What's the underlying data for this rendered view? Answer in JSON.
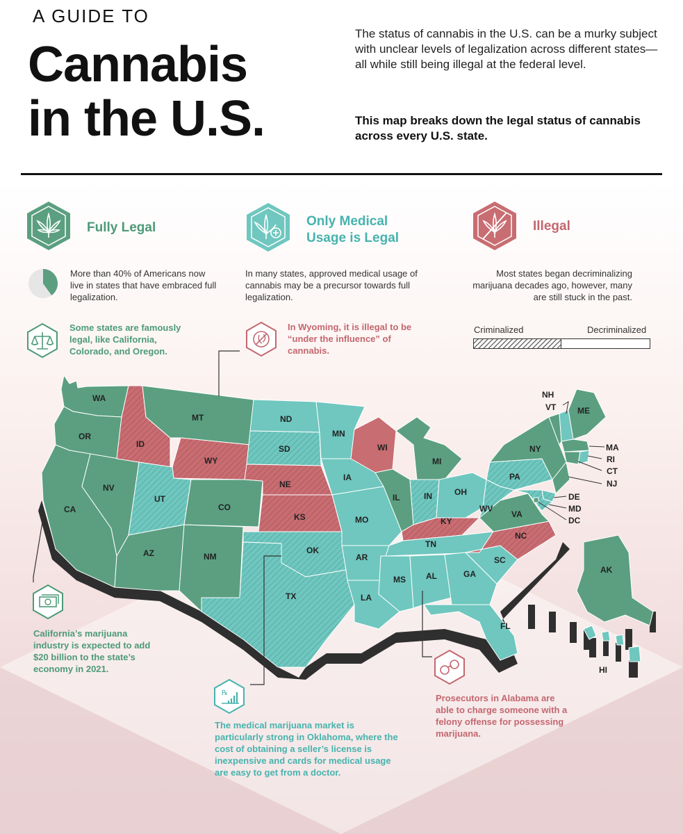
{
  "header": {
    "kicker": "A GUIDE TO",
    "title_line1": "Cannabis",
    "title_line2": "in the U.S.",
    "intro": "The status of cannabis in the U.S. can be a murky subject with unclear levels of legalization across different states—all while still being illegal at the federal level.",
    "intro_bold": "This map breaks down the legal status of cannabis across every U.S. state."
  },
  "legend": {
    "fully_legal": {
      "label": "Fully Legal",
      "color": "#5b9f80",
      "description": "More than 40% of Americans now live in states that have embraced full legalization.",
      "pie_fraction": 0.4
    },
    "medical": {
      "label_line1": "Only Medical",
      "label_line2": "Usage is Legal",
      "color": "#6fc7bf",
      "description": "In many states, approved medical usage of cannabis may be a precursor towards full legalization."
    },
    "illegal": {
      "label": "Illegal",
      "color": "#c86d72",
      "description": "Most states began decriminalizing marijuana decades ago, however, many are still stuck in the past."
    },
    "bar": {
      "left_label": "Criminalized",
      "right_label": "Decriminalized"
    }
  },
  "callouts": {
    "famous_legal": "Some states are famously legal, like California, Colorado, and Oregon.",
    "wyoming": "In Wyoming, it is illegal to be “under the influence” of cannabis.",
    "california": "California’s marijuana industry is expected to add $20 billion to the state’s economy in 2021.",
    "oklahoma": "The medical marijuana market is particularly strong in Oklahoma, where the cost of obtaining a seller’s license is inexpensive and cards for medical usage are easy to get from a doctor.",
    "alabama": "Prosecutors in Alabama are able to charge someone with a felony offense for possessing marijuana."
  },
  "states": [
    {
      "abbr": "WA",
      "status": "legal"
    },
    {
      "abbr": "OR",
      "status": "legal"
    },
    {
      "abbr": "CA",
      "status": "legal"
    },
    {
      "abbr": "NV",
      "status": "legal"
    },
    {
      "abbr": "ID",
      "status": "illegal"
    },
    {
      "abbr": "MT",
      "status": "legal"
    },
    {
      "abbr": "WY",
      "status": "illegal"
    },
    {
      "abbr": "UT",
      "status": "medical"
    },
    {
      "abbr": "CO",
      "status": "legal"
    },
    {
      "abbr": "AZ",
      "status": "legal"
    },
    {
      "abbr": "NM",
      "status": "legal"
    },
    {
      "abbr": "ND",
      "status": "medical"
    },
    {
      "abbr": "SD",
      "status": "medical"
    },
    {
      "abbr": "NE",
      "status": "illegal"
    },
    {
      "abbr": "KS",
      "status": "illegal"
    },
    {
      "abbr": "OK",
      "status": "medical"
    },
    {
      "abbr": "TX",
      "status": "medical"
    },
    {
      "abbr": "MN",
      "status": "medical"
    },
    {
      "abbr": "IA",
      "status": "medical"
    },
    {
      "abbr": "MO",
      "status": "medical"
    },
    {
      "abbr": "AR",
      "status": "medical"
    },
    {
      "abbr": "LA",
      "status": "medical"
    },
    {
      "abbr": "WI",
      "status": "illegal"
    },
    {
      "abbr": "IL",
      "status": "legal"
    },
    {
      "abbr": "MI",
      "status": "legal"
    },
    {
      "abbr": "IN",
      "status": "medical"
    },
    {
      "abbr": "OH",
      "status": "medical"
    },
    {
      "abbr": "KY",
      "status": "illegal"
    },
    {
      "abbr": "TN",
      "status": "medical"
    },
    {
      "abbr": "MS",
      "status": "medical"
    },
    {
      "abbr": "AL",
      "status": "medical"
    },
    {
      "abbr": "GA",
      "status": "medical"
    },
    {
      "abbr": "FL",
      "status": "medical"
    },
    {
      "abbr": "SC",
      "status": "medical"
    },
    {
      "abbr": "NC",
      "status": "illegal"
    },
    {
      "abbr": "VA",
      "status": "legal"
    },
    {
      "abbr": "WV",
      "status": "medical"
    },
    {
      "abbr": "PA",
      "status": "medical"
    },
    {
      "abbr": "NY",
      "status": "legal"
    },
    {
      "abbr": "ME",
      "status": "legal"
    },
    {
      "abbr": "NH",
      "status": "medical"
    },
    {
      "abbr": "VT",
      "status": "legal"
    },
    {
      "abbr": "MA",
      "status": "legal"
    },
    {
      "abbr": "RI",
      "status": "medical"
    },
    {
      "abbr": "CT",
      "status": "legal"
    },
    {
      "abbr": "NJ",
      "status": "legal"
    },
    {
      "abbr": "DE",
      "status": "medical"
    },
    {
      "abbr": "MD",
      "status": "medical"
    },
    {
      "abbr": "DC",
      "status": "legal"
    },
    {
      "abbr": "AK",
      "status": "legal"
    },
    {
      "abbr": "HI",
      "status": "medical"
    }
  ]
}
